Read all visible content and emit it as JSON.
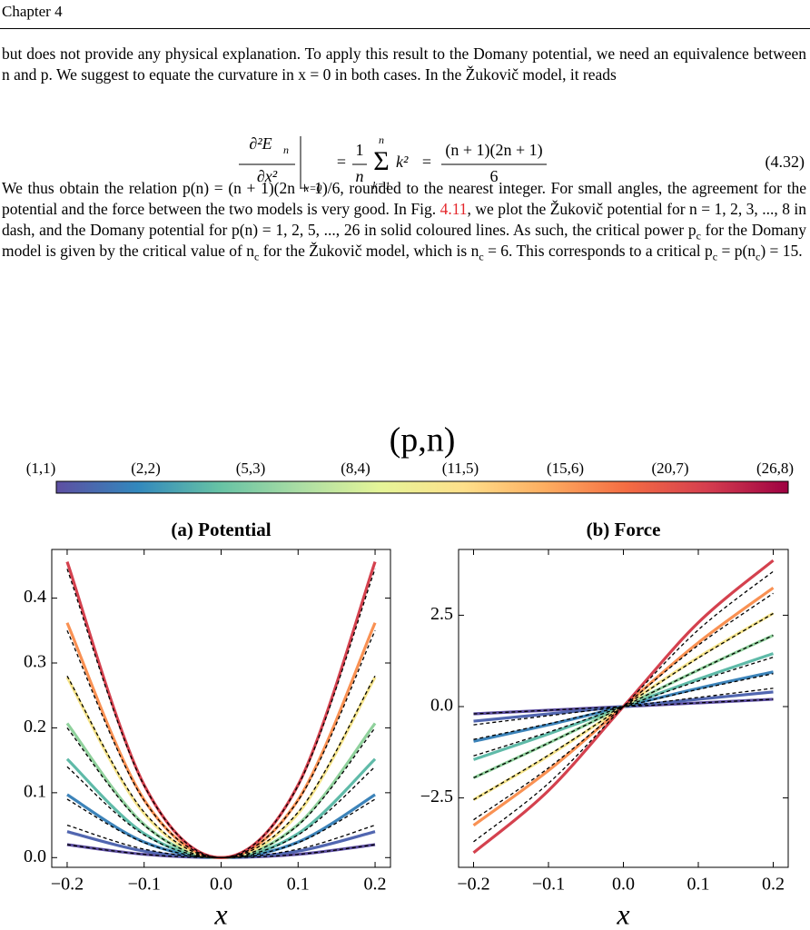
{
  "header": {
    "chapter": "Chapter 4"
  },
  "paragraphs": [
    [
      "but does not provide any physical explanation. To apply this result to the Domany potential, we need an equivalence between n and p. We suggest to equate the curvature in x = 0 in both cases. In the Žukovič model, it reads"
    ],
    [
      "We thus obtain the relation p(n) = (n + 1)(2n + 1)/6, rounded to the nearest integer. For small angles, the agreement for the potential and the force between the two models is very good. In Fig. ",
      "4.11",
      ", we plot the Žukovič potential for n = 1, 2, 3, ..., 8 in dash, and the Domany potential for p(n) = 1, 2, 5, ..., 26 in solid coloured lines. As such, the critical power p",
      "c",
      " for the Domany model is given by the critical value of n",
      "c",
      " for the Žukovič model, which is n",
      "c",
      " = 6. This corresponds to a critical p",
      "c",
      " = p(n",
      "c",
      ") = 15."
    ]
  ],
  "equation": {
    "lhs_numerator": "∂²E",
    "lhs_sub": "n",
    "lhs_denominator": "∂x²",
    "evaluated_at": "x=0",
    "eq": "=",
    "one": "1",
    "over_n": "n",
    "sum": "Σ",
    "sum_top": "n",
    "sum_bottom": "k=1",
    "term": "k²",
    "rhs_numerator": "(n + 1)(2n + 1)",
    "rhs_denominator": "6",
    "number": "(4.32)"
  },
  "figure": {
    "colorbar": {
      "title": "(p,n)",
      "labels": [
        "(1,1)",
        "(2,2)",
        "(5,3)",
        "(8,4)",
        "(11,5)",
        "(15,6)",
        "(20,7)",
        "(26,8)"
      ],
      "colors": [
        "#5e4fa2",
        "#3288bd",
        "#66c2a5",
        "#abdda4",
        "#e6f598",
        "#fee08b",
        "#fdae61",
        "#f46d43",
        "#d53e4f",
        "#9e0142"
      ]
    }
  },
  "chart_data": [
    {
      "type": "line",
      "title": "(a) Potential",
      "x_label": "x",
      "x": [
        -0.2,
        -0.1,
        0,
        0.1,
        0.2
      ],
      "xlim": [
        -0.22,
        0.22
      ],
      "xticks": [
        {
          "value": -0.2,
          "label": "−0.2"
        },
        {
          "value": -0.1,
          "label": "−0.1"
        },
        {
          "value": 0,
          "label": "0.0"
        },
        0.1,
        0.2
      ],
      "ylim": [
        -0.015,
        0.475
      ],
      "yticks": [
        {
          "value": 0,
          "label": "0.0"
        },
        0.1,
        0.2,
        0.3,
        0.4
      ],
      "series": [
        {
          "color": "#5e4fa2",
          "style": "solid",
          "values": [
            0.02,
            0.005,
            0,
            0.005,
            0.02
          ]
        },
        {
          "color": "#5166b0",
          "style": "solid",
          "values": [
            0.04,
            0.01,
            0,
            0.01,
            0.04
          ]
        },
        {
          "color": "#3c83b9",
          "style": "solid",
          "values": [
            0.097,
            0.024,
            0,
            0.024,
            0.097
          ]
        },
        {
          "color": "#5fbaa8",
          "style": "solid",
          "values": [
            0.152,
            0.037,
            0,
            0.037,
            0.152
          ]
        },
        {
          "color": "#8fd19c",
          "style": "solid",
          "values": [
            0.207,
            0.051,
            0,
            0.051,
            0.207
          ]
        },
        {
          "color": "#f6e58c",
          "style": "solid",
          "values": [
            0.278,
            0.068,
            0,
            0.068,
            0.278
          ]
        },
        {
          "color": "#f99153",
          "style": "solid",
          "values": [
            0.362,
            0.089,
            0,
            0.089,
            0.362
          ]
        },
        {
          "color": "#d4414e",
          "style": "solid",
          "values": [
            0.456,
            0.112,
            0,
            0.112,
            0.456
          ]
        },
        {
          "color": "#000000",
          "style": "dashed",
          "values": [
            0.02,
            0.005,
            0,
            0.005,
            0.02
          ]
        },
        {
          "color": "#000000",
          "style": "dashed",
          "values": [
            0.05,
            0.013,
            0,
            0.013,
            0.05
          ]
        },
        {
          "color": "#000000",
          "style": "dashed",
          "values": [
            0.09,
            0.023,
            0,
            0.023,
            0.09
          ]
        },
        {
          "color": "#000000",
          "style": "dashed",
          "values": [
            0.14,
            0.035,
            0,
            0.035,
            0.14
          ]
        },
        {
          "color": "#000000",
          "style": "dashed",
          "values": [
            0.2,
            0.05,
            0,
            0.05,
            0.2
          ]
        },
        {
          "color": "#000000",
          "style": "dashed",
          "values": [
            0.28,
            0.07,
            0,
            0.07,
            0.28
          ]
        },
        {
          "color": "#000000",
          "style": "dashed",
          "values": [
            0.35,
            0.088,
            0,
            0.088,
            0.35
          ]
        },
        {
          "color": "#000000",
          "style": "dashed",
          "values": [
            0.445,
            0.111,
            0,
            0.111,
            0.445
          ]
        }
      ]
    },
    {
      "type": "line",
      "title": "(b) Force",
      "x_label": "x",
      "x": [
        -0.2,
        -0.1,
        0,
        0.1,
        0.2
      ],
      "xlim": [
        -0.22,
        0.22
      ],
      "xticks": [
        {
          "value": -0.2,
          "label": "−0.2"
        },
        {
          "value": -0.1,
          "label": "−0.1"
        },
        {
          "value": 0,
          "label": "0.0"
        },
        0.1,
        0.2
      ],
      "ylim": [
        -4.4,
        4.3
      ],
      "yticks": [
        {
          "value": -2.5,
          "label": "−2.5"
        },
        {
          "value": 0,
          "label": "0.0"
        },
        2.5
      ],
      "series": [
        {
          "color": "#5e4fa2",
          "style": "solid",
          "values": [
            -0.2,
            -0.1,
            0,
            0.1,
            0.2
          ]
        },
        {
          "color": "#5166b0",
          "style": "solid",
          "values": [
            -0.4,
            -0.2,
            0,
            0.2,
            0.4
          ]
        },
        {
          "color": "#3c83b9",
          "style": "solid",
          "values": [
            -0.95,
            -0.5,
            0,
            0.5,
            0.95
          ]
        },
        {
          "color": "#5fbaa8",
          "style": "solid",
          "values": [
            -1.45,
            -0.75,
            0,
            0.75,
            1.45
          ]
        },
        {
          "color": "#8fd19c",
          "style": "solid",
          "values": [
            -1.95,
            -1.0,
            0,
            1.0,
            1.95
          ]
        },
        {
          "color": "#f6e58c",
          "style": "solid",
          "values": [
            -2.55,
            -1.35,
            0,
            1.35,
            2.55
          ]
        },
        {
          "color": "#f99153",
          "style": "solid",
          "values": [
            -3.25,
            -1.75,
            0,
            1.75,
            3.25
          ]
        },
        {
          "color": "#d4414e",
          "style": "solid",
          "values": [
            -4.0,
            -2.3,
            0,
            2.3,
            4.0
          ]
        },
        {
          "color": "#000000",
          "style": "dashed",
          "values": [
            -0.2,
            -0.1,
            0,
            0.1,
            0.2
          ]
        },
        {
          "color": "#000000",
          "style": "dashed",
          "values": [
            -0.5,
            -0.25,
            0,
            0.25,
            0.5
          ]
        },
        {
          "color": "#000000",
          "style": "dashed",
          "values": [
            -0.9,
            -0.47,
            0,
            0.47,
            0.9
          ]
        },
        {
          "color": "#000000",
          "style": "dashed",
          "values": [
            -1.35,
            -0.7,
            0,
            0.7,
            1.35
          ]
        },
        {
          "color": "#000000",
          "style": "dashed",
          "values": [
            -1.95,
            -1.0,
            0,
            1.0,
            1.95
          ]
        },
        {
          "color": "#000000",
          "style": "dashed",
          "values": [
            -2.55,
            -1.33,
            0,
            1.33,
            2.55
          ]
        },
        {
          "color": "#000000",
          "style": "dashed",
          "values": [
            -3.1,
            -1.68,
            0,
            1.68,
            3.1
          ]
        },
        {
          "color": "#000000",
          "style": "dashed",
          "values": [
            -3.7,
            -2.1,
            0,
            2.1,
            3.7
          ]
        }
      ]
    }
  ]
}
